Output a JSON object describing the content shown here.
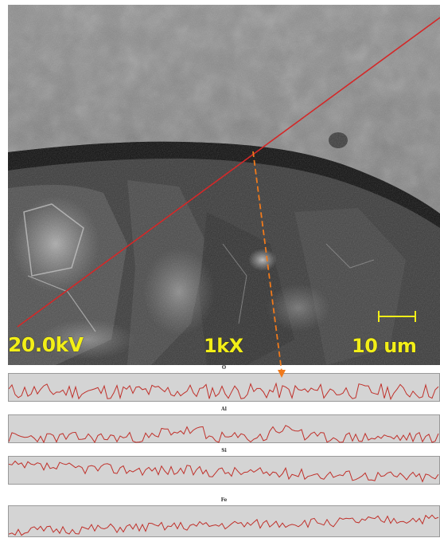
{
  "micrograph": {
    "accelerating_voltage": "20.0kV",
    "magnification": "1kX",
    "scale_bar_label": "10 um"
  },
  "line_profiles": [
    {
      "element": "O"
    },
    {
      "element": "Al"
    },
    {
      "element": "Si"
    },
    {
      "element": "Fe"
    }
  ],
  "colors": {
    "label_yellow": "#f2ee18",
    "scan_line": "#d42828",
    "marker_line": "#f07a1c",
    "trace": "#c0302a"
  }
}
